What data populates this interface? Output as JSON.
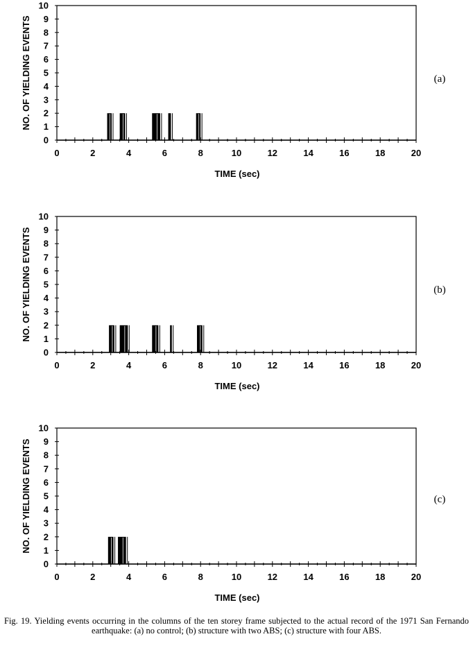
{
  "chart_data": [
    {
      "type": "bar",
      "panel_label": "(a)",
      "xlabel": "TIME (sec)",
      "ylabel": "NO. OF YIELDING EVENTS",
      "xlim": [
        0,
        20
      ],
      "ylim": [
        0,
        10
      ],
      "xticks": [
        "0",
        "2",
        "4",
        "6",
        "8",
        "10",
        "12",
        "14",
        "16",
        "18",
        "20"
      ],
      "yticks": [
        "0",
        "1",
        "2",
        "3",
        "4",
        "5",
        "6",
        "7",
        "8",
        "9",
        "10"
      ],
      "grid": false,
      "events": [
        {
          "t_start": 2.8,
          "t_end": 3.05,
          "count": 2
        },
        {
          "t_start": 3.5,
          "t_end": 3.8,
          "count": 2
        },
        {
          "t_start": 5.3,
          "t_end": 5.75,
          "count": 2
        },
        {
          "t_start": 6.2,
          "t_end": 6.35,
          "count": 2
        },
        {
          "t_start": 7.75,
          "t_end": 8.0,
          "count": 2
        }
      ]
    },
    {
      "type": "bar",
      "panel_label": "(b)",
      "xlabel": "TIME (sec)",
      "ylabel": "NO. OF YIELDING EVENTS",
      "xlim": [
        0,
        20
      ],
      "ylim": [
        0,
        10
      ],
      "xticks": [
        "0",
        "2",
        "4",
        "6",
        "8",
        "10",
        "12",
        "14",
        "16",
        "18",
        "20"
      ],
      "yticks": [
        "0",
        "1",
        "2",
        "3",
        "4",
        "5",
        "6",
        "7",
        "8",
        "9",
        "10"
      ],
      "grid": false,
      "events": [
        {
          "t_start": 2.9,
          "t_end": 3.2,
          "count": 2
        },
        {
          "t_start": 3.5,
          "t_end": 3.95,
          "count": 2
        },
        {
          "t_start": 5.3,
          "t_end": 5.65,
          "count": 2
        },
        {
          "t_start": 6.3,
          "t_end": 6.4,
          "count": 2
        },
        {
          "t_start": 7.8,
          "t_end": 8.1,
          "count": 2
        }
      ]
    },
    {
      "type": "bar",
      "panel_label": "(c)",
      "xlabel": "TIME (sec)",
      "ylabel": "NO. OF YIELDING EVENTS",
      "xlim": [
        0,
        20
      ],
      "ylim": [
        0,
        10
      ],
      "xticks": [
        "0",
        "2",
        "4",
        "6",
        "8",
        "10",
        "12",
        "14",
        "16",
        "18",
        "20"
      ],
      "yticks": [
        "0",
        "1",
        "2",
        "3",
        "4",
        "5",
        "6",
        "7",
        "8",
        "9",
        "10"
      ],
      "grid": false,
      "events": [
        {
          "t_start": 2.85,
          "t_end": 3.15,
          "count": 2
        },
        {
          "t_start": 3.4,
          "t_end": 3.85,
          "count": 2
        }
      ]
    }
  ],
  "caption": "Fig. 19. Yielding events occurring in the columns of the ten storey frame subjected to the actual record of the 1971 San Fernando earthquake: (a) no control; (b) structure with two ABS; (c) structure with four ABS."
}
